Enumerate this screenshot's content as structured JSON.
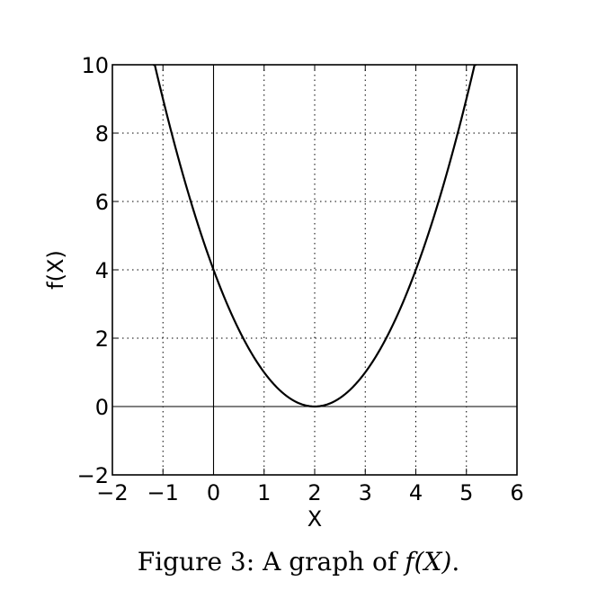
{
  "chart_data": {
    "type": "line",
    "xlabel": "X",
    "ylabel": "f(X)",
    "xlim": [
      -2,
      6
    ],
    "ylim": [
      -2,
      10
    ],
    "x_ticks": [
      -2,
      -1,
      0,
      1,
      2,
      3,
      4,
      5,
      6
    ],
    "y_ticks": [
      -2,
      0,
      2,
      4,
      6,
      8,
      10
    ],
    "x_tick_labels": [
      "−2",
      "−1",
      "0",
      "1",
      "2",
      "3",
      "4",
      "5",
      "6"
    ],
    "y_tick_labels": [
      "−2",
      "0",
      "2",
      "4",
      "6",
      "8",
      "10"
    ],
    "grid": true,
    "series": [
      {
        "x": [
          -1.2,
          -1.0,
          -0.5,
          0.0,
          0.5,
          1.0,
          1.5,
          2.0,
          2.5,
          3.0,
          3.5,
          4.0,
          4.5,
          5.0,
          5.2
        ],
        "y": [
          10.24,
          9.0,
          6.25,
          4.0,
          2.25,
          1.0,
          0.25,
          0.0,
          0.25,
          1.0,
          2.25,
          4.0,
          6.25,
          9.0,
          10.24
        ],
        "color": "#000000"
      }
    ]
  },
  "caption": {
    "prefix": "Figure 3:  A graph of ",
    "math": "f(X)",
    "suffix": "."
  }
}
